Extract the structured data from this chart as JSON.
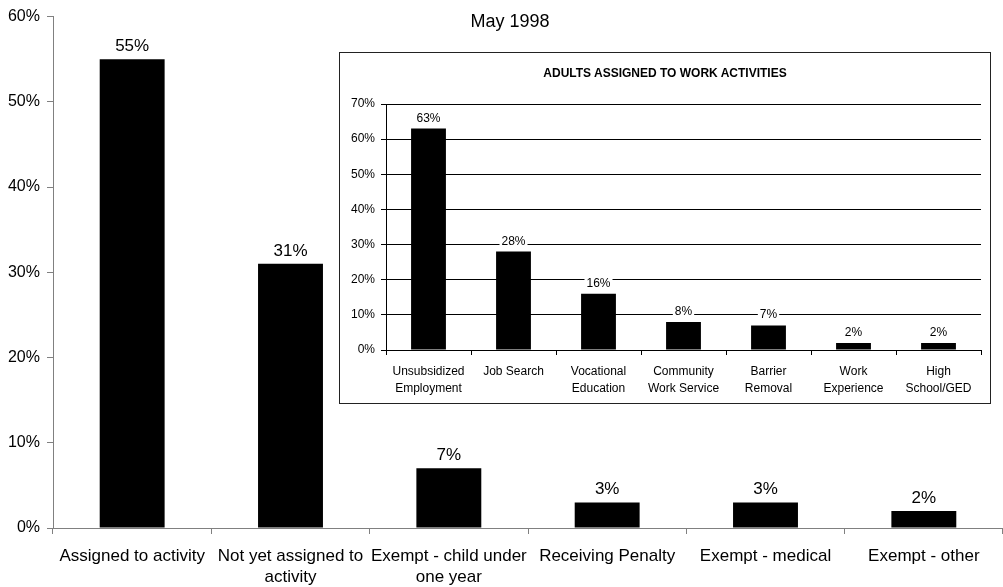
{
  "chart_data": [
    {
      "type": "bar",
      "subtitle": "May 1998",
      "categories": [
        "Assigned to activity",
        "Not yet assigned to activity",
        "Exempt - child under one year",
        "Receiving Penalty",
        "Exempt - medical",
        "Exempt - other"
      ],
      "values": [
        55,
        31,
        7,
        3,
        3,
        2
      ],
      "value_labels": [
        "55%",
        "31%",
        "7%",
        "3%",
        "3%",
        "2%"
      ],
      "color": "#000000",
      "ylim": [
        0,
        60
      ],
      "yticks": [
        {
          "value": 0,
          "label": "0%"
        },
        {
          "value": 10,
          "label": "10%"
        },
        {
          "value": 20,
          "label": "20%"
        },
        {
          "value": 30,
          "label": "30%"
        },
        {
          "value": 40,
          "label": "40%"
        },
        {
          "value": 50,
          "label": "50%"
        },
        {
          "value": 60,
          "label": "60%"
        }
      ]
    },
    {
      "type": "bar",
      "title": "ADULTS ASSIGNED TO WORK ACTIVITIES",
      "categories": [
        "Unsubsidized Employment",
        "Job Search",
        "Vocational Education",
        "Community Work Service",
        "Barrier Removal",
        "Work Experience",
        "High School/GED"
      ],
      "values": [
        63,
        28,
        16,
        8,
        7,
        2,
        2
      ],
      "value_labels": [
        "63%",
        "28%",
        "16%",
        "8%",
        "7%",
        "2%",
        "2%"
      ],
      "color": "#000000",
      "ylim": [
        0,
        70
      ],
      "yticks": [
        {
          "value": 0,
          "label": "0%"
        },
        {
          "value": 10,
          "label": "10%"
        },
        {
          "value": 20,
          "label": "20%"
        },
        {
          "value": 30,
          "label": "30%"
        },
        {
          "value": 40,
          "label": "40%"
        },
        {
          "value": 50,
          "label": "50%"
        },
        {
          "value": 60,
          "label": "60%"
        },
        {
          "value": 70,
          "label": "70%"
        }
      ],
      "grid": "y"
    }
  ]
}
